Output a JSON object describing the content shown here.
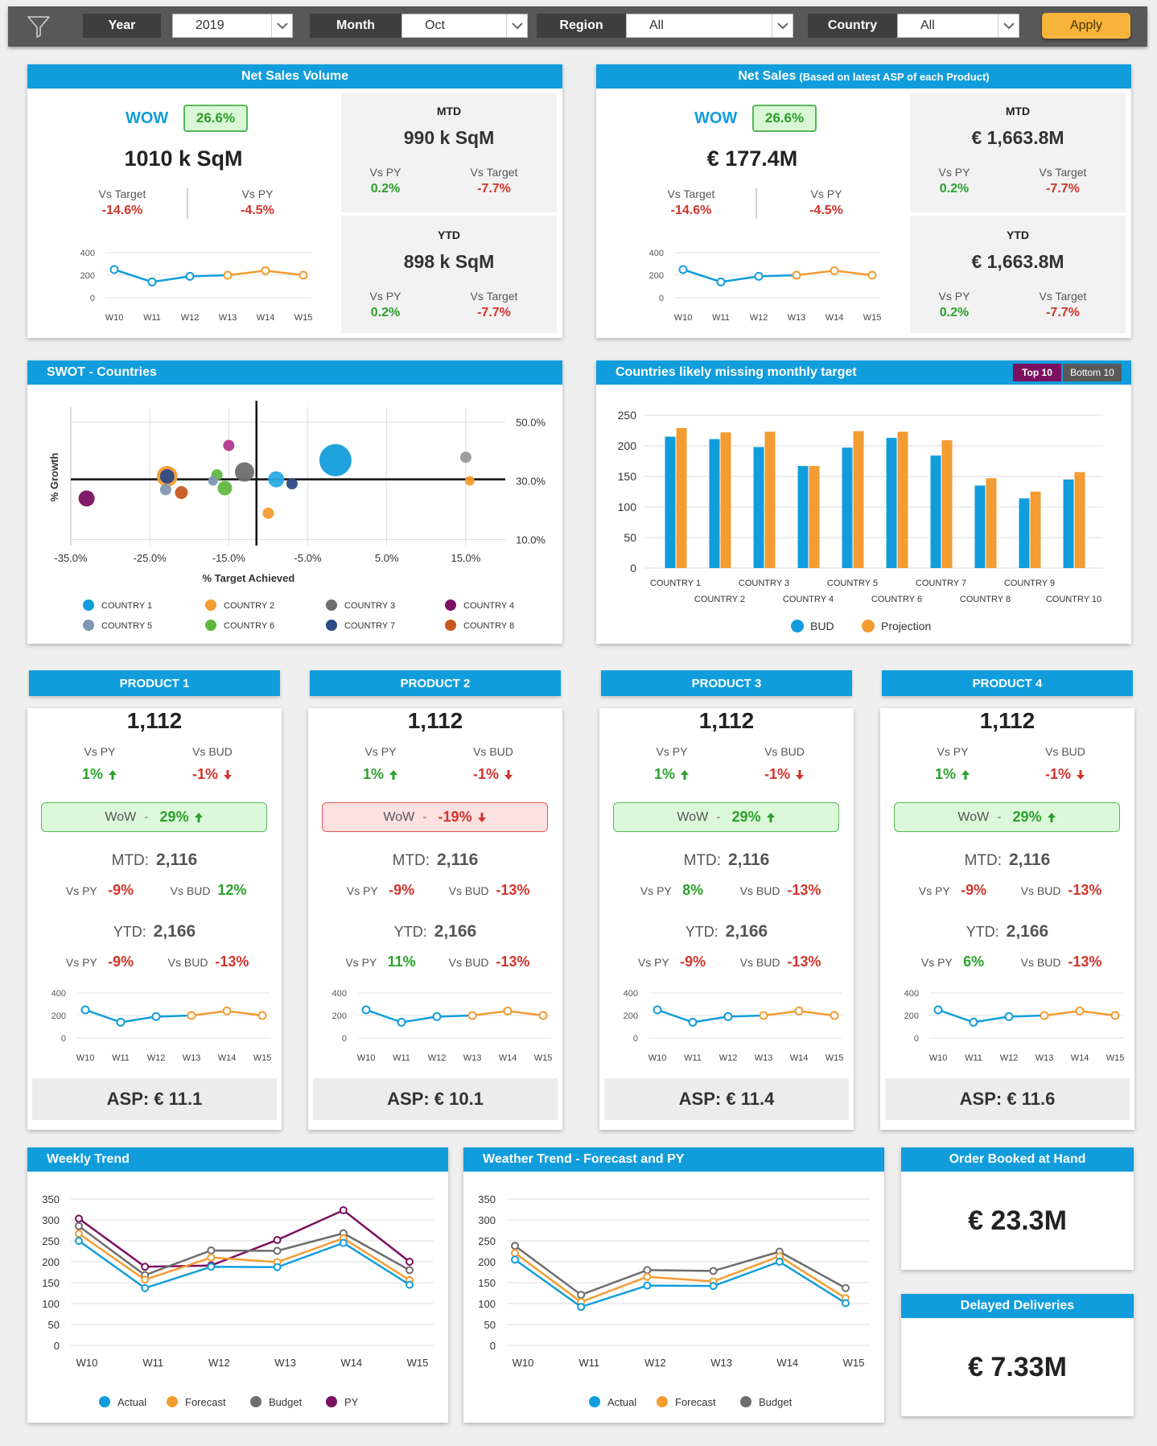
{
  "filters": {
    "year": {
      "label": "Year",
      "value": "2019"
    },
    "month": {
      "label": "Month",
      "value": "Oct"
    },
    "region": {
      "label": "Region",
      "value": "All"
    },
    "country": {
      "label": "Country",
      "value": "All"
    },
    "apply_label": "Apply",
    "icon": "filter-icon"
  },
  "colors": {
    "accent": "#119ddc",
    "orange": "#f39c32",
    "gray": "#6d6d6d",
    "purple": "#7b1060",
    "positive": "#2ca02c",
    "negative": "#d0342c"
  },
  "net_sales_volume": {
    "title": "Net Sales Volume",
    "wow_label": "WOW",
    "wow_value": "26.6%",
    "main_value": "1010 k SqM",
    "vs_target_label": "Vs Target",
    "vs_target_value": "-14.6%",
    "vs_py_label": "Vs PY",
    "vs_py_value": "-4.5%",
    "mtd": {
      "label": "MTD",
      "value": "990 k SqM",
      "vs_py_label": "Vs PY",
      "vs_py": "0.2%",
      "vs_target_label": "Vs Target",
      "vs_target": "-7.7%"
    },
    "ytd": {
      "label": "YTD",
      "value": "898 k SqM",
      "vs_py_label": "Vs PY",
      "vs_py": "0.2%",
      "vs_target_label": "Vs Target",
      "vs_target": "-7.7%"
    }
  },
  "net_sales": {
    "title": "Net Sales",
    "subtitle": "(Based on latest ASP of each Product)",
    "wow_label": "WOW",
    "wow_value": "26.6%",
    "main_value": "€ 177.4M",
    "vs_target_label": "Vs Target",
    "vs_target_value": "-14.6%",
    "vs_py_label": "Vs PY",
    "vs_py_value": "-4.5%",
    "mtd": {
      "label": "MTD",
      "value": "€ 1,663.8M",
      "vs_py_label": "Vs PY",
      "vs_py": "0.2%",
      "vs_target_label": "Vs Target",
      "vs_target": "-7.7%"
    },
    "ytd": {
      "label": "YTD",
      "value": "€ 1,663.8M",
      "vs_py_label": "Vs PY",
      "vs_py": "0.2%",
      "vs_target_label": "Vs Target",
      "vs_target": "-7.7%"
    }
  },
  "swot": {
    "title": "SWOT - Countries"
  },
  "missing_target": {
    "title": "Countries likely missing monthly target",
    "toggle_top": "Top 10",
    "toggle_bottom": "Bottom 10"
  },
  "products": [
    {
      "title": "PRODUCT 1",
      "value": "1,112",
      "vs_py_label": "Vs PY",
      "vs_py": "1%",
      "vs_bud_label": "Vs BUD",
      "vs_bud": "-1%",
      "wow_label": "WoW",
      "wow_dash": "-",
      "wow": "29%",
      "wow_state": "good",
      "mtd_label": "MTD:",
      "mtd": "2,116",
      "mtd_vs_py_label": "Vs PY",
      "mtd_vs_py": "-9%",
      "mtd_vs_bud_label": "Vs BUD",
      "mtd_vs_bud": "12%",
      "ytd_label": "YTD:",
      "ytd": "2,166",
      "ytd_vs_py_label": "Vs PY",
      "ytd_vs_py": "-9%",
      "ytd_vs_bud_label": "Vs BUD",
      "ytd_vs_bud": "-13%",
      "asp": "ASP: € 11.1"
    },
    {
      "title": "PRODUCT 2",
      "value": "1,112",
      "vs_py_label": "Vs PY",
      "vs_py": "1%",
      "vs_bud_label": "Vs BUD",
      "vs_bud": "-1%",
      "wow_label": "WoW",
      "wow_dash": "-",
      "wow": "-19%",
      "wow_state": "bad",
      "mtd_label": "MTD:",
      "mtd": "2,116",
      "mtd_vs_py_label": "Vs PY",
      "mtd_vs_py": "-9%",
      "mtd_vs_bud_label": "Vs BUD",
      "mtd_vs_bud": "-13%",
      "ytd_label": "YTD:",
      "ytd": "2,166",
      "ytd_vs_py_label": "Vs PY",
      "ytd_vs_py": "11%",
      "ytd_vs_bud_label": "Vs BUD",
      "ytd_vs_bud": "-13%",
      "asp": "ASP: € 10.1"
    },
    {
      "title": "PRODUCT 3",
      "value": "1,112",
      "vs_py_label": "Vs PY",
      "vs_py": "1%",
      "vs_bud_label": "Vs BUD",
      "vs_bud": "-1%",
      "wow_label": "WoW",
      "wow_dash": "-",
      "wow": "29%",
      "wow_state": "good",
      "mtd_label": "MTD:",
      "mtd": "2,116",
      "mtd_vs_py_label": "Vs PY",
      "mtd_vs_py": "8%",
      "mtd_vs_bud_label": "Vs BUD",
      "mtd_vs_bud": "-13%",
      "ytd_label": "YTD:",
      "ytd": "2,166",
      "ytd_vs_py_label": "Vs PY",
      "ytd_vs_py": "-9%",
      "ytd_vs_bud_label": "Vs BUD",
      "ytd_vs_bud": "-13%",
      "asp": "ASP: € 11.4"
    },
    {
      "title": "PRODUCT 4",
      "value": "1,112",
      "vs_py_label": "Vs PY",
      "vs_py": "1%",
      "vs_bud_label": "Vs BUD",
      "vs_bud": "-1%",
      "wow_label": "WoW",
      "wow_dash": "-",
      "wow": "29%",
      "wow_state": "good",
      "mtd_label": "MTD:",
      "mtd": "2,116",
      "mtd_vs_py_label": "Vs PY",
      "mtd_vs_py": "-9%",
      "mtd_vs_bud_label": "Vs BUD",
      "mtd_vs_bud": "-13%",
      "ytd_label": "YTD:",
      "ytd": "2,166",
      "ytd_vs_py_label": "Vs PY",
      "ytd_vs_py": "6%",
      "ytd_vs_bud_label": "Vs BUD",
      "ytd_vs_bud": "-13%",
      "asp": "ASP: € 11.6"
    }
  ],
  "weekly_trend": {
    "title": "Weekly Trend"
  },
  "weather_trend": {
    "title": "Weather Trend - Forecast and PY"
  },
  "order_booked": {
    "title": "Order Booked at Hand",
    "value": "€ 23.3M"
  },
  "delayed": {
    "title": "Delayed Deliveries",
    "value": "€ 7.33M"
  },
  "chart_data": [
    {
      "id": "spark",
      "type": "line",
      "categories": [
        "W10",
        "W11",
        "W12",
        "W13",
        "W14",
        "W15"
      ],
      "ylim": [
        0,
        400
      ],
      "yticks": [
        "400",
        "200",
        "0"
      ],
      "values": [
        250,
        140,
        190,
        200,
        240,
        200
      ],
      "segment_colors": [
        "#119ddc",
        "#119ddc",
        "#119ddc",
        "#f39c32",
        "#f39c32"
      ]
    },
    {
      "id": "swot",
      "type": "scatter",
      "title": "",
      "xlabel": "% Target Achieved",
      "ylabel": "% Growth",
      "xticks": [
        "-35.0%",
        "-25.0%",
        "-15.0%",
        "-5.0%",
        "5.0%",
        "15.0%"
      ],
      "yticks": [
        "50.0%",
        "30.0%",
        "10.0%"
      ],
      "xlim": [
        -35,
        20
      ],
      "ylim": [
        8,
        55
      ],
      "points": [
        {
          "x": -33,
          "y": 24,
          "r": 10,
          "color": "#7b1060"
        },
        {
          "x": -22.8,
          "y": 31.5,
          "r": 13,
          "color": "#f39c32"
        },
        {
          "x": -22.8,
          "y": 31.5,
          "r": 9,
          "color": "#2d4a86"
        },
        {
          "x": -23,
          "y": 27,
          "r": 7,
          "color": "#7f97b3"
        },
        {
          "x": -21,
          "y": 26,
          "r": 8,
          "color": "#c55a1c"
        },
        {
          "x": -15,
          "y": 42,
          "r": 7,
          "color": "#b03a8e"
        },
        {
          "x": -16.5,
          "y": 32,
          "r": 7,
          "color": "#61b840"
        },
        {
          "x": -17,
          "y": 30,
          "r": 6,
          "color": "#7f97b3"
        },
        {
          "x": -15.5,
          "y": 27.5,
          "r": 9,
          "color": "#61b840"
        },
        {
          "x": -13,
          "y": 33,
          "r": 12,
          "color": "#6d6d6d"
        },
        {
          "x": -10,
          "y": 19,
          "r": 7,
          "color": "#f39c32"
        },
        {
          "x": -9,
          "y": 30.5,
          "r": 10,
          "color": "#2aaae5"
        },
        {
          "x": -7,
          "y": 29,
          "r": 7,
          "color": "#2d4a86"
        },
        {
          "x": -1.5,
          "y": 37,
          "r": 20,
          "color": "#119ddc"
        },
        {
          "x": 15,
          "y": 38,
          "r": 7,
          "color": "#9a9a9a"
        },
        {
          "x": 15.5,
          "y": 30,
          "r": 6,
          "color": "#f39c32"
        }
      ],
      "legend": [
        {
          "name": "COUNTRY 1",
          "color": "#119ddc"
        },
        {
          "name": "COUNTRY 2",
          "color": "#f39c32"
        },
        {
          "name": "COUNTRY 3",
          "color": "#6d6d6d"
        },
        {
          "name": "COUNTRY 4",
          "color": "#7b1060"
        },
        {
          "name": "COUNTRY 5",
          "color": "#7f97b3"
        },
        {
          "name": "COUNTRY 6",
          "color": "#61b840"
        },
        {
          "name": "COUNTRY 7",
          "color": "#2d4a86"
        },
        {
          "name": "COUNTRY 8",
          "color": "#c55a1c"
        }
      ]
    },
    {
      "id": "missing",
      "type": "bar",
      "categories": [
        "COUNTRY 1",
        "COUNTRY 2",
        "COUNTRY 3",
        "COUNTRY 4",
        "COUNTRY 5",
        "COUNTRY 6",
        "COUNTRY 7",
        "COUNTRY 8",
        "COUNTRY 9",
        "COUNTRY 10"
      ],
      "ylim": [
        0,
        250
      ],
      "yticks": [
        "250",
        "200",
        "150",
        "100",
        "50",
        "0"
      ],
      "series": [
        {
          "name": "BUD",
          "color": "#119ddc",
          "values": [
            215,
            211,
            198,
            167,
            197,
            213,
            184,
            135,
            114,
            145
          ]
        },
        {
          "name": "Projection",
          "color": "#f39c32",
          "values": [
            229,
            222,
            223,
            167,
            224,
            223,
            209,
            147,
            125,
            157
          ]
        }
      ],
      "legend": "bottom"
    },
    {
      "id": "weekly",
      "type": "line",
      "categories": [
        "W10",
        "W11",
        "W12",
        "W13",
        "W14",
        "W15"
      ],
      "ylim": [
        0,
        350
      ],
      "yticks": [
        "350",
        "300",
        "250",
        "200",
        "150",
        "100",
        "50",
        "0"
      ],
      "series": [
        {
          "name": "Actual",
          "color": "#119ddc",
          "values": [
            250,
            137,
            188,
            187,
            245,
            145
          ]
        },
        {
          "name": "Forecast",
          "color": "#f39c32",
          "values": [
            267,
            157,
            210,
            199,
            256,
            156
          ]
        },
        {
          "name": "Budget",
          "color": "#6d6d6d",
          "values": [
            285,
            168,
            227,
            226,
            268,
            180
          ]
        },
        {
          "name": "PY",
          "color": "#7b1060",
          "values": [
            303,
            188,
            191,
            252,
            323,
            200
          ]
        }
      ],
      "legend": "bottom"
    },
    {
      "id": "weather",
      "type": "line",
      "categories": [
        "W10",
        "W11",
        "W12",
        "W13",
        "W14",
        "W15"
      ],
      "ylim": [
        0,
        350
      ],
      "yticks": [
        "350",
        "300",
        "250",
        "200",
        "150",
        "100",
        "50",
        "0"
      ],
      "series": [
        {
          "name": "Actual",
          "color": "#119ddc",
          "values": [
            205,
            92,
            143,
            142,
            200,
            101
          ]
        },
        {
          "name": "Forecast",
          "color": "#f39c32",
          "values": [
            221,
            104,
            164,
            153,
            213,
            113
          ]
        },
        {
          "name": "Budget",
          "color": "#6d6d6d",
          "values": [
            238,
            121,
            180,
            178,
            224,
            137
          ]
        }
      ],
      "legend": "bottom"
    }
  ]
}
